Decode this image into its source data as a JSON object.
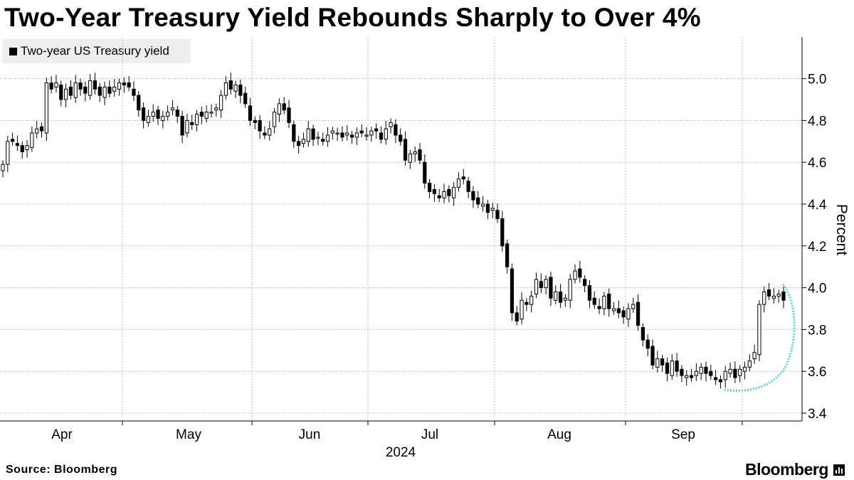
{
  "title": "Two-Year Treasury Yield Rebounds Sharply to Over 4%",
  "legend_label": "Two-year US Treasury yield",
  "source": "Source: Bloomberg",
  "brand": "Bloomberg",
  "colors": {
    "candle": "#000000",
    "grid": "#bdbdbd",
    "highlight": "#4fd8e0"
  },
  "chart_data": {
    "type": "candlestick",
    "title": "Two-Year Treasury Yield Rebounds Sharply to Over 4%",
    "series_name": "Two-year US Treasury yield",
    "ylabel": "Percent",
    "xlabel": "2024",
    "ylim": [
      3.38,
      5.2
    ],
    "yticks": [
      "3.4",
      "3.6",
      "3.8",
      "4.0",
      "4.2",
      "4.4",
      "4.6",
      "4.8",
      "5.0"
    ],
    "month_labels": [
      "Apr",
      "May",
      "Jun",
      "Jul",
      "Aug",
      "Sep"
    ],
    "year_label": "2024",
    "annotation": "dotted curved highlight marking the rebound from ~3.50% to ~4.0%",
    "close": [
      4.59,
      4.7,
      4.7,
      4.68,
      4.65,
      4.68,
      4.74,
      4.76,
      4.75,
      4.98,
      4.95,
      4.98,
      4.9,
      4.95,
      4.92,
      4.98,
      4.95,
      4.93,
      4.99,
      4.95,
      4.92,
      4.96,
      4.93,
      4.96,
      4.98,
      4.97,
      4.96,
      4.92,
      4.85,
      4.8,
      4.82,
      4.84,
      4.81,
      4.82,
      4.84,
      4.86,
      4.82,
      4.73,
      4.8,
      4.78,
      4.83,
      4.82,
      4.84,
      4.84,
      4.86,
      4.92,
      4.98,
      4.95,
      4.97,
      4.92,
      4.88,
      4.8,
      4.79,
      4.75,
      4.73,
      4.76,
      4.84,
      4.88,
      4.85,
      4.79,
      4.7,
      4.68,
      4.71,
      4.76,
      4.71,
      4.72,
      4.7,
      4.73,
      4.75,
      4.74,
      4.72,
      4.74,
      4.72,
      4.74,
      4.74,
      4.73,
      4.75,
      4.75,
      4.71,
      4.76,
      4.79,
      4.73,
      4.7,
      4.61,
      4.64,
      4.65,
      4.61,
      4.5,
      4.46,
      4.45,
      4.43,
      4.46,
      4.44,
      4.48,
      4.52,
      4.52,
      4.46,
      4.42,
      4.4,
      4.4,
      4.36,
      4.38,
      4.33,
      4.2,
      4.1,
      3.88,
      3.84,
      3.94,
      3.92,
      3.96,
      4.04,
      4.0,
      4.04,
      3.95,
      3.98,
      3.93,
      3.95,
      4.04,
      4.08,
      4.05,
      4.01,
      3.94,
      3.92,
      3.9,
      3.96,
      3.9,
      3.9,
      3.88,
      3.86,
      3.9,
      3.92,
      3.82,
      3.75,
      3.71,
      3.63,
      3.66,
      3.63,
      3.59,
      3.65,
      3.6,
      3.58,
      3.58,
      3.57,
      3.6,
      3.62,
      3.59,
      3.58,
      3.56,
      3.55,
      3.6,
      3.61,
      3.57,
      3.61,
      3.62,
      3.65,
      3.69,
      3.92,
      3.98,
      3.96,
      3.96,
      3.97,
      3.94
    ]
  }
}
